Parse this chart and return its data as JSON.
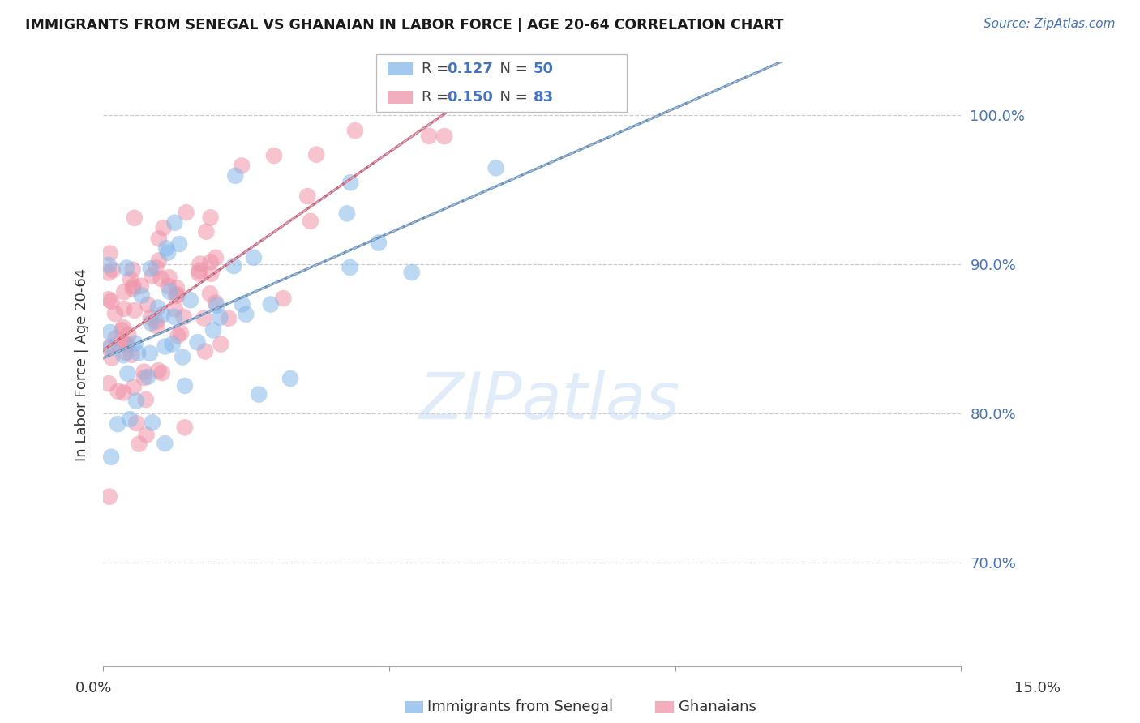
{
  "title": "IMMIGRANTS FROM SENEGAL VS GHANAIAN IN LABOR FORCE | AGE 20-64 CORRELATION CHART",
  "source": "Source: ZipAtlas.com",
  "ylabel": "In Labor Force | Age 20-64",
  "ytick_labels": [
    "100.0%",
    "90.0%",
    "80.0%",
    "70.0%"
  ],
  "ytick_values": [
    1.0,
    0.9,
    0.8,
    0.7
  ],
  "xlim": [
    0.0,
    0.15
  ],
  "ylim": [
    0.63,
    1.035
  ],
  "watermark": "ZIPatlas",
  "senegal_color": "#85b8ea",
  "ghanaian_color": "#f093a8",
  "senegal_line_color": "#5590cc",
  "ghanaian_line_color": "#e05575",
  "dash_color": "#bbbbbb",
  "grid_color": "#cccccc",
  "senegal_R": 0.127,
  "senegal_N": 50,
  "ghanaian_R": 0.15,
  "ghanaian_N": 83,
  "senegal_seed": 7,
  "ghanaian_seed": 3,
  "background": "#ffffff",
  "title_color": "#1a1a1a",
  "source_color": "#4472c4",
  "ylabel_color": "#333333",
  "xtick_color": "#333333",
  "ytick_right_color": "#4472c4",
  "legend_edge_color": "#bbbbbb",
  "R_N_color": "#4472c4",
  "watermark_color": "#cce0f5",
  "watermark_alpha": 0.6,
  "marker_size": 220,
  "marker_alpha": 0.55
}
